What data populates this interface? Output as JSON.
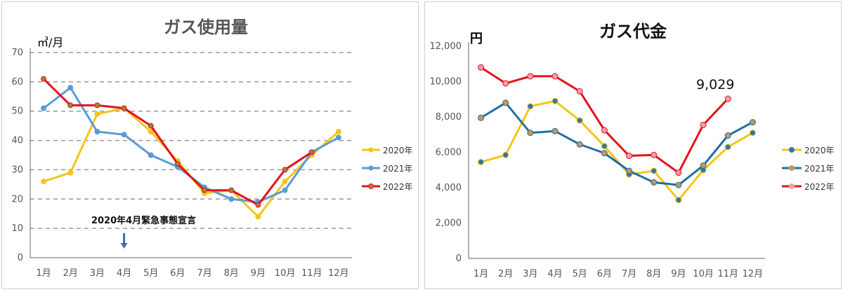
{
  "chart_data": [
    {
      "type": "line",
      "title": "ガス使用量",
      "ylabel": "㎥/月",
      "categories": [
        "1月",
        "2月",
        "3月",
        "4月",
        "5月",
        "6月",
        "7月",
        "8月",
        "9月",
        "10月",
        "11月",
        "12月"
      ],
      "ylim": [
        0,
        70
      ],
      "yticks": [
        "0",
        "10",
        "20",
        "30",
        "40",
        "50",
        "60",
        "70"
      ],
      "grid": "dashed horizontal",
      "legend": "right",
      "series": [
        {
          "name": "2020年",
          "color": "#f5c518",
          "marker_fill": "#f5c518",
          "values": [
            26,
            29,
            49,
            51,
            43,
            33,
            22,
            23,
            14,
            26,
            35,
            43
          ]
        },
        {
          "name": "2021年",
          "color": "#5b9bd5",
          "marker_fill": "#5b9bd5",
          "values": [
            51,
            58,
            43,
            42,
            35,
            31,
            24,
            20,
            19,
            23,
            36,
            41
          ]
        },
        {
          "name": "2022年",
          "color": "#e3121b",
          "marker_fill": "#a08040",
          "values": [
            61,
            52,
            52,
            51,
            45,
            32,
            23,
            23,
            18,
            30,
            36,
            null
          ]
        }
      ],
      "annotation": {
        "text": "2020年4月緊急事態宣言",
        "arrow": "down",
        "at": "4月"
      }
    },
    {
      "type": "line",
      "title": "ガス代金",
      "ylabel": "円",
      "categories": [
        "1月",
        "2月",
        "3月",
        "4月",
        "5月",
        "6月",
        "7月",
        "8月",
        "9月",
        "10月",
        "11月",
        "12月"
      ],
      "ylim": [
        0,
        12000
      ],
      "yticks": [
        "0",
        "2,000",
        "4,000",
        "6,000",
        "8,000",
        "10,000",
        "12,000"
      ],
      "grid": "none",
      "legend": "right",
      "series": [
        {
          "name": "2020年",
          "color": "#f5c518",
          "marker_fill": "#2e75b6",
          "values": [
            5450,
            5850,
            8600,
            8900,
            7800,
            6350,
            4750,
            4950,
            3300,
            5000,
            6300,
            7100
          ]
        },
        {
          "name": "2021年",
          "color": "#1f6fa5",
          "marker_fill": "#c9955c",
          "values": [
            7950,
            8800,
            7100,
            7200,
            6450,
            5950,
            4950,
            4300,
            4150,
            5250,
            6950,
            7700
          ]
        },
        {
          "name": "2022年",
          "color": "#e3121b",
          "marker_fill": "#f0a0a8",
          "values": [
            10800,
            9900,
            10300,
            10300,
            9450,
            7250,
            5800,
            5850,
            4850,
            7550,
            9029,
            null
          ]
        }
      ],
      "annotation": {
        "text": "9,029",
        "at": "11月"
      }
    }
  ]
}
